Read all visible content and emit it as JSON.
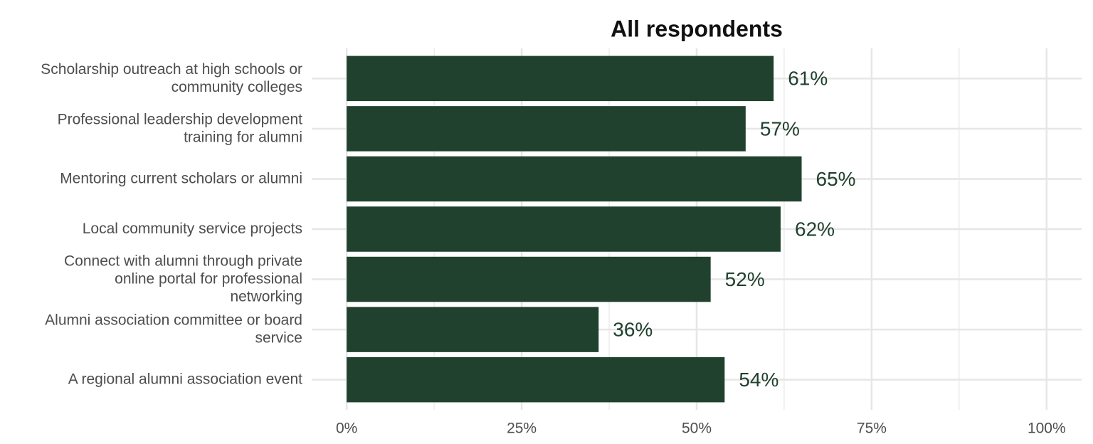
{
  "chart_data": {
    "type": "bar",
    "orientation": "horizontal",
    "title": "All respondents",
    "categories": [
      "Scholarship outreach at high schools or community colleges",
      "Professional leadership development training for alumni",
      "Mentoring current scholars or alumni",
      "Local community service projects",
      "Connect with alumni through private online portal for professional networking",
      "Alumni association committee or board service",
      "A regional alumni association event"
    ],
    "values": [
      61,
      57,
      65,
      62,
      52,
      36,
      54
    ],
    "value_labels": [
      "61%",
      "57%",
      "65%",
      "62%",
      "52%",
      "36%",
      "54%"
    ],
    "color": "#21412f",
    "xlim": [
      -5,
      105
    ],
    "xticks": [
      {
        "value": 0,
        "label": "0%"
      },
      {
        "value": 25,
        "label": "25%"
      },
      {
        "value": 50,
        "label": "50%"
      },
      {
        "value": 75,
        "label": "75%"
      },
      {
        "value": 100,
        "label": "100%"
      }
    ],
    "grid": true
  }
}
